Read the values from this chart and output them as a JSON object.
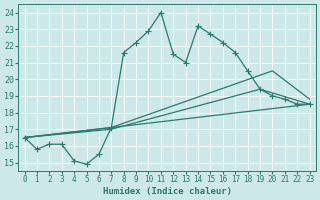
{
  "background_color": "#cce8e8",
  "grid_color": "#b0d0d0",
  "line_color": "#2a7a70",
  "xlabel": "Humidex (Indice chaleur)",
  "xlim": [
    -0.5,
    23.5
  ],
  "ylim": [
    14.5,
    24.5
  ],
  "xticks": [
    0,
    1,
    2,
    3,
    4,
    5,
    6,
    7,
    8,
    9,
    10,
    11,
    12,
    13,
    14,
    15,
    16,
    17,
    18,
    19,
    20,
    21,
    22,
    23
  ],
  "yticks": [
    15,
    16,
    17,
    18,
    19,
    20,
    21,
    22,
    23,
    24
  ],
  "series1_x": [
    0,
    1,
    2,
    3,
    4,
    5,
    6,
    7,
    8,
    9,
    10,
    11,
    12,
    13,
    14,
    15,
    16,
    17,
    18,
    19,
    20,
    21,
    22,
    23
  ],
  "series1_y": [
    16.5,
    15.8,
    16.1,
    16.1,
    15.1,
    14.9,
    15.5,
    17.1,
    21.6,
    22.2,
    22.9,
    24.0,
    21.5,
    21.0,
    23.2,
    22.7,
    22.2,
    21.6,
    20.5,
    19.4,
    19.0,
    18.8,
    18.5,
    18.5
  ],
  "series2_x": [
    0,
    7,
    19,
    23
  ],
  "series2_y": [
    16.5,
    17.0,
    19.4,
    18.5
  ],
  "series3_x": [
    0,
    7,
    20,
    23
  ],
  "series3_y": [
    16.5,
    17.1,
    20.5,
    18.8
  ],
  "series4_x": [
    0,
    7,
    23
  ],
  "series4_y": [
    16.5,
    17.1,
    18.5
  ],
  "figsize": [
    3.2,
    2.0
  ],
  "dpi": 100
}
